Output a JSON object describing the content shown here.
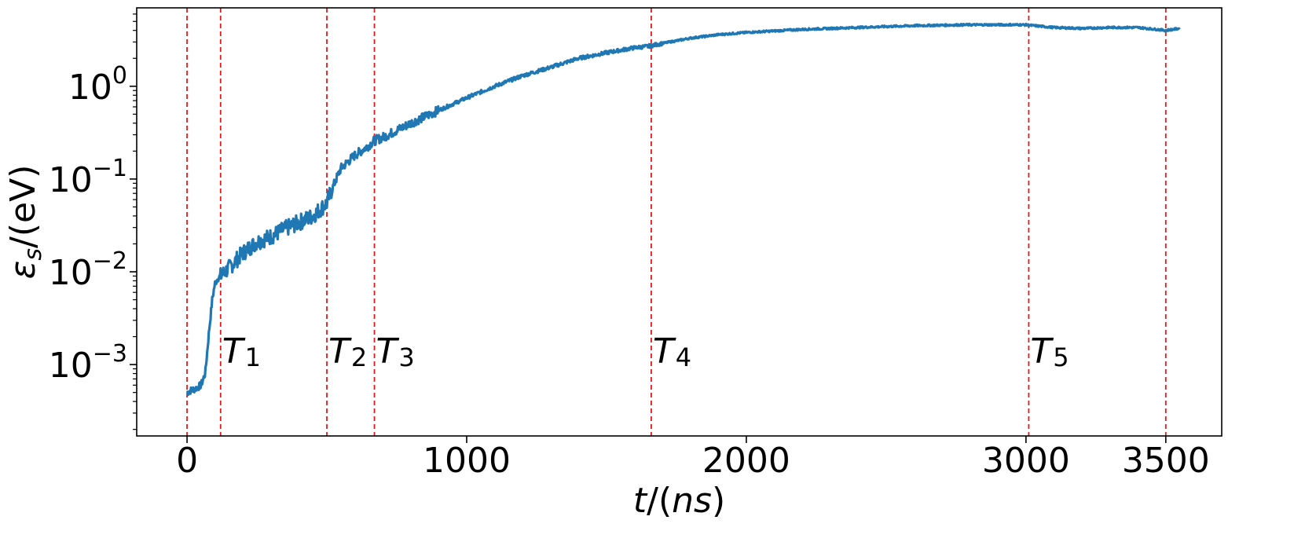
{
  "chart_data": {
    "type": "line",
    "xlabel": "t/(ns)",
    "ylabel": "ε_s/(eV)",
    "xlim": [
      -180,
      3700
    ],
    "ylim": [
      0.00017,
      7.0
    ],
    "yscale": "log",
    "grid": false,
    "x_ticks": [
      {
        "value": 0,
        "label": "0"
      },
      {
        "value": 1000,
        "label": "1000"
      },
      {
        "value": 2000,
        "label": "2000"
      },
      {
        "value": 3000,
        "label": "3000"
      },
      {
        "value": 3500,
        "label": "3500"
      }
    ],
    "y_ticks": [
      {
        "value": 0.001,
        "base": "10",
        "exp": "−3"
      },
      {
        "value": 0.01,
        "base": "10",
        "exp": "−2"
      },
      {
        "value": 0.1,
        "base": "10",
        "exp": "−1"
      },
      {
        "value": 1,
        "base": "10",
        "exp": "0"
      }
    ],
    "series": [
      {
        "color": "#1f77b4",
        "x": [
          0,
          10,
          30,
          50,
          65,
          80,
          90,
          100,
          110,
          120,
          150,
          200,
          250,
          300,
          350,
          400,
          450,
          500,
          520,
          550,
          600,
          650,
          670,
          700,
          800,
          900,
          1000,
          1100,
          1200,
          1300,
          1400,
          1500,
          1600,
          1650,
          1700,
          1800,
          1900,
          2000,
          2200,
          2400,
          2600,
          2800,
          3000,
          3010,
          3100,
          3200,
          3300,
          3400,
          3500,
          3550
        ],
        "y": [
          0.0005,
          0.00052,
          0.00055,
          0.0006,
          0.0008,
          0.0025,
          0.005,
          0.0075,
          0.0085,
          0.009,
          0.011,
          0.016,
          0.021,
          0.024,
          0.029,
          0.034,
          0.04,
          0.055,
          0.08,
          0.13,
          0.18,
          0.23,
          0.26,
          0.28,
          0.4,
          0.55,
          0.75,
          1.0,
          1.3,
          1.6,
          2.0,
          2.3,
          2.6,
          2.7,
          2.9,
          3.3,
          3.6,
          3.8,
          4.1,
          4.3,
          4.5,
          4.6,
          4.6,
          4.55,
          4.3,
          4.2,
          4.3,
          4.3,
          4.0,
          4.2
        ]
      }
    ],
    "markers": [
      {
        "x": 0,
        "label": null
      },
      {
        "x": 120,
        "symbol": "T",
        "sub": "1"
      },
      {
        "x": 500,
        "symbol": "T",
        "sub": "2"
      },
      {
        "x": 670,
        "symbol": "T",
        "sub": "3"
      },
      {
        "x": 1660,
        "symbol": "T",
        "sub": "4"
      },
      {
        "x": 3010,
        "symbol": "T",
        "sub": "5"
      },
      {
        "x": 3500,
        "label": null
      }
    ],
    "marker_color": "#e31a1c"
  }
}
